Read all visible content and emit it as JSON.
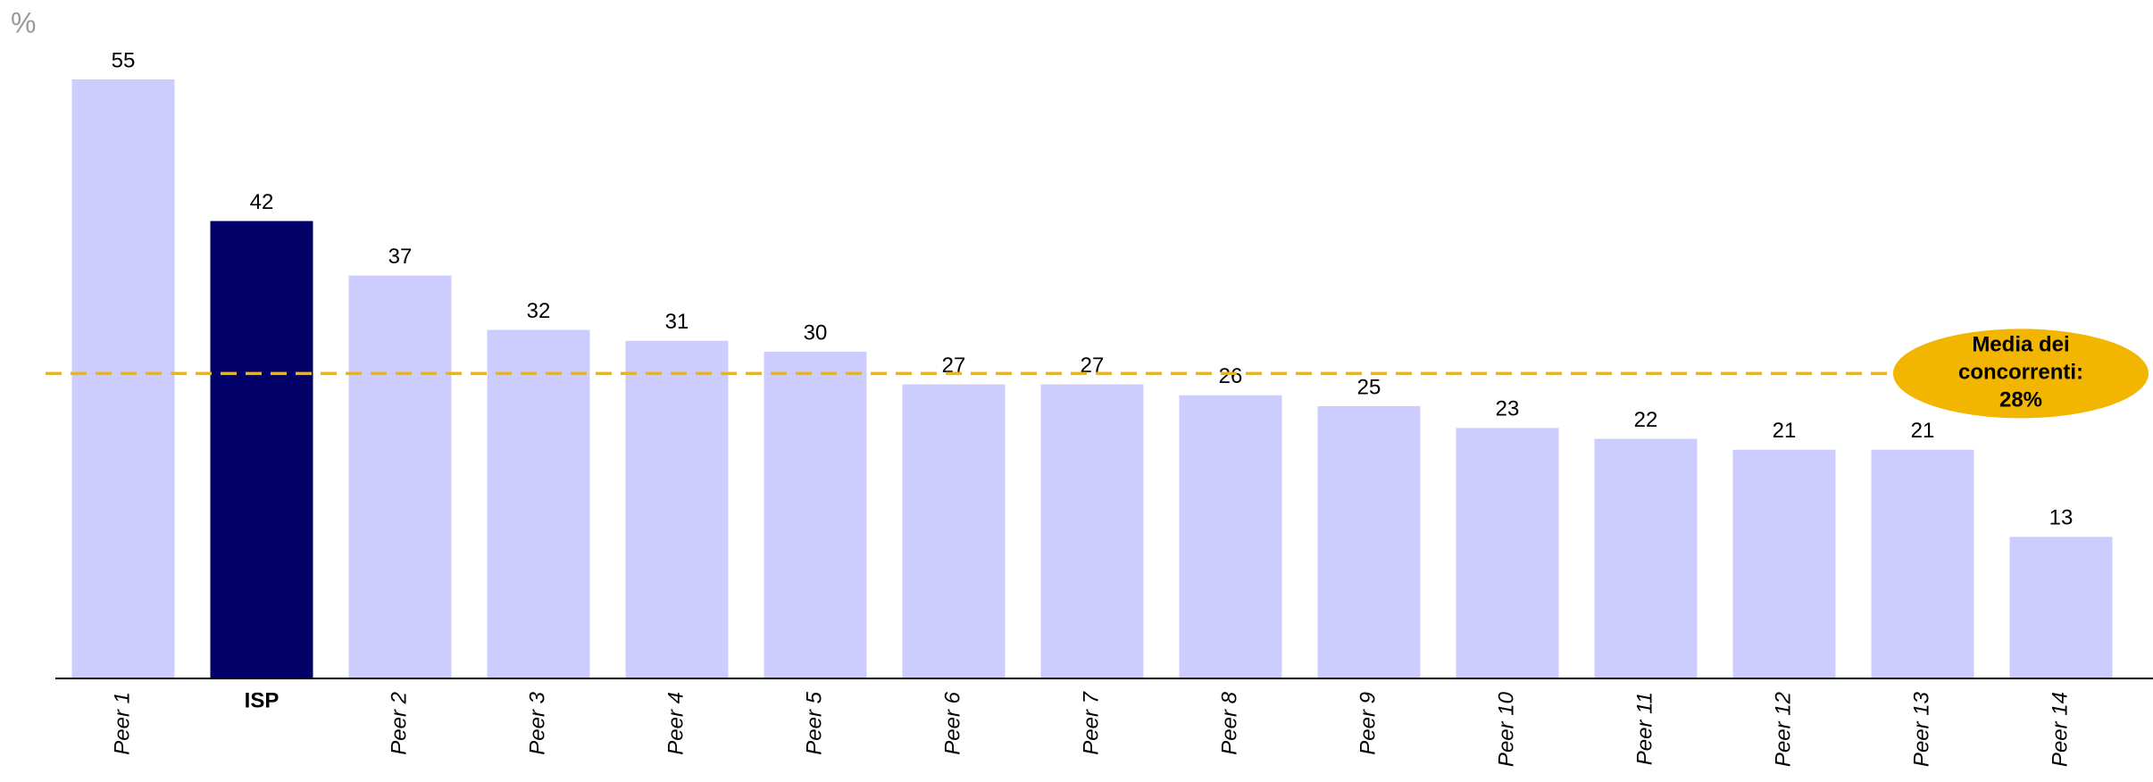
{
  "chart_data": {
    "type": "bar",
    "unit": "%",
    "categories": [
      "Peer 1",
      "ISP",
      "Peer 2",
      "Peer 3",
      "Peer 4",
      "Peer 5",
      "Peer 6",
      "Peer 7",
      "Peer 8",
      "Peer 9",
      "Peer 10",
      "Peer 11",
      "Peer 12",
      "Peer 13",
      "Peer 14"
    ],
    "values": [
      55,
      42,
      37,
      32,
      31,
      30,
      27,
      27,
      26,
      25,
      23,
      22,
      21,
      21,
      13
    ],
    "color": "#ccccff",
    "highlight_color": "#000066",
    "highlight": 1,
    "ylim": [
      0,
      55
    ],
    "average": {
      "value": 28,
      "label": [
        "Media dei",
        "concorrenti:",
        "28%"
      ],
      "color": "#f2b600"
    }
  }
}
